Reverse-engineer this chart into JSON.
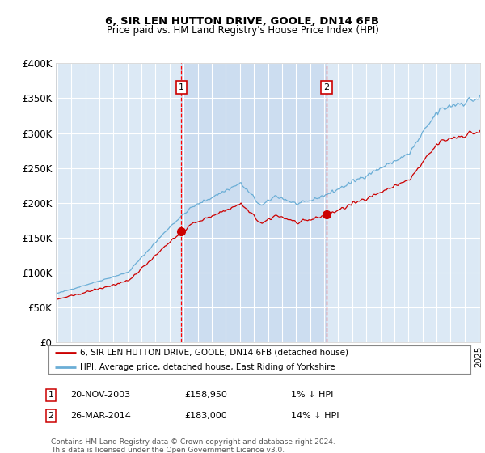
{
  "title": "6, SIR LEN HUTTON DRIVE, GOOLE, DN14 6FB",
  "subtitle": "Price paid vs. HM Land Registry's House Price Index (HPI)",
  "background_color": "#ffffff",
  "plot_bg_color": "#dce9f5",
  "between_sales_bg": "#ccddf0",
  "legend_line1": "6, SIR LEN HUTTON DRIVE, GOOLE, DN14 6FB (detached house)",
  "legend_line2": "HPI: Average price, detached house, East Riding of Yorkshire",
  "sale1_date": "20-NOV-2003",
  "sale1_price": 158950,
  "sale1_label": "1% ↓ HPI",
  "sale2_date": "26-MAR-2014",
  "sale2_price": 183000,
  "sale2_label": "14% ↓ HPI",
  "footer": "Contains HM Land Registry data © Crown copyright and database right 2024.\nThis data is licensed under the Open Government Licence v3.0.",
  "hpi_color": "#6baed6",
  "price_color": "#cc0000",
  "sale_marker_color": "#cc0000",
  "vline_color": "#ff0000",
  "ylim": [
    0,
    400000
  ],
  "yticks": [
    0,
    50000,
    100000,
    150000,
    200000,
    250000,
    300000,
    350000,
    400000
  ]
}
